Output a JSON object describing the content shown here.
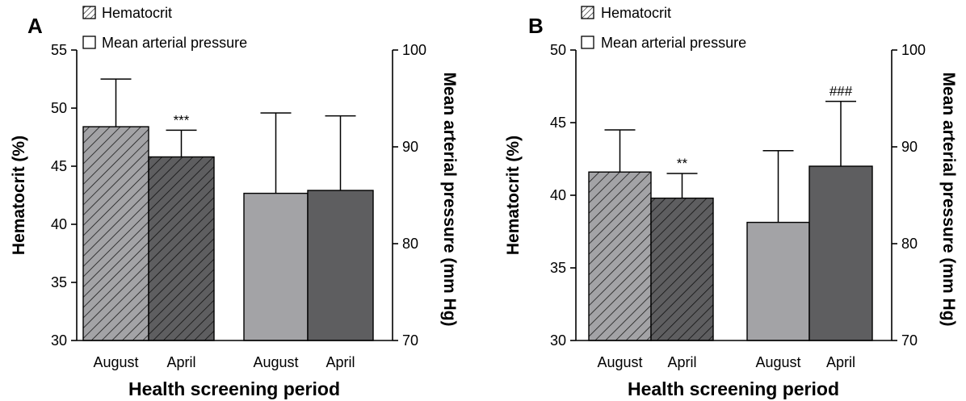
{
  "figure": {
    "legend": {
      "hematocrit": "Hematocrit",
      "map": "Mean arterial pressure"
    }
  },
  "chart_data": [
    {
      "panel": "A",
      "type": "bar",
      "xlabel": "Health screening period",
      "ylabel": "Hematocrit (%)",
      "y2label": "Mean arterial pressure (mm Hg)",
      "ylim": [
        30,
        55
      ],
      "yticks": [
        30,
        35,
        40,
        45,
        50,
        55
      ],
      "y2lim": [
        70,
        100
      ],
      "y2ticks": [
        70,
        80,
        90,
        100
      ],
      "grid": false,
      "legend_position": "top-left",
      "colors": {
        "august": "#a3a3a6",
        "april": "#5e5e60"
      },
      "groups": [
        {
          "series": "Hematocrit",
          "axis": "left",
          "hatched": true,
          "bars": [
            {
              "category": "August",
              "value": 48.4,
              "error": 4.1,
              "label": ""
            },
            {
              "category": "April",
              "value": 45.8,
              "error": 2.3,
              "label": "***"
            }
          ]
        },
        {
          "series": "Mean arterial pressure",
          "axis": "right",
          "hatched": false,
          "bars": [
            {
              "category": "August",
              "value": 85.2,
              "error": 8.3,
              "label": ""
            },
            {
              "category": "April",
              "value": 85.5,
              "error": 7.7,
              "label": ""
            }
          ]
        }
      ]
    },
    {
      "panel": "B",
      "type": "bar",
      "xlabel": "Health screening period",
      "ylabel": "Hematocrit (%)",
      "y2label": "Mean arterial pressure (mm Hg)",
      "ylim": [
        30,
        50
      ],
      "yticks": [
        30,
        35,
        40,
        45,
        50
      ],
      "y2lim": [
        70,
        100
      ],
      "y2ticks": [
        70,
        80,
        90,
        100
      ],
      "grid": false,
      "legend_position": "top-left",
      "colors": {
        "august": "#a3a3a6",
        "april": "#5e5e60"
      },
      "groups": [
        {
          "series": "Hematocrit",
          "axis": "left",
          "hatched": true,
          "bars": [
            {
              "category": "August",
              "value": 41.6,
              "error": 2.9,
              "label": ""
            },
            {
              "category": "April",
              "value": 39.8,
              "error": 1.7,
              "label": "**"
            }
          ]
        },
        {
          "series": "Mean arterial pressure",
          "axis": "right",
          "hatched": false,
          "bars": [
            {
              "category": "August",
              "value": 82.2,
              "error": 7.4,
              "label": ""
            },
            {
              "category": "April",
              "value": 88.0,
              "error": 6.7,
              "label": "###"
            }
          ]
        }
      ]
    }
  ]
}
